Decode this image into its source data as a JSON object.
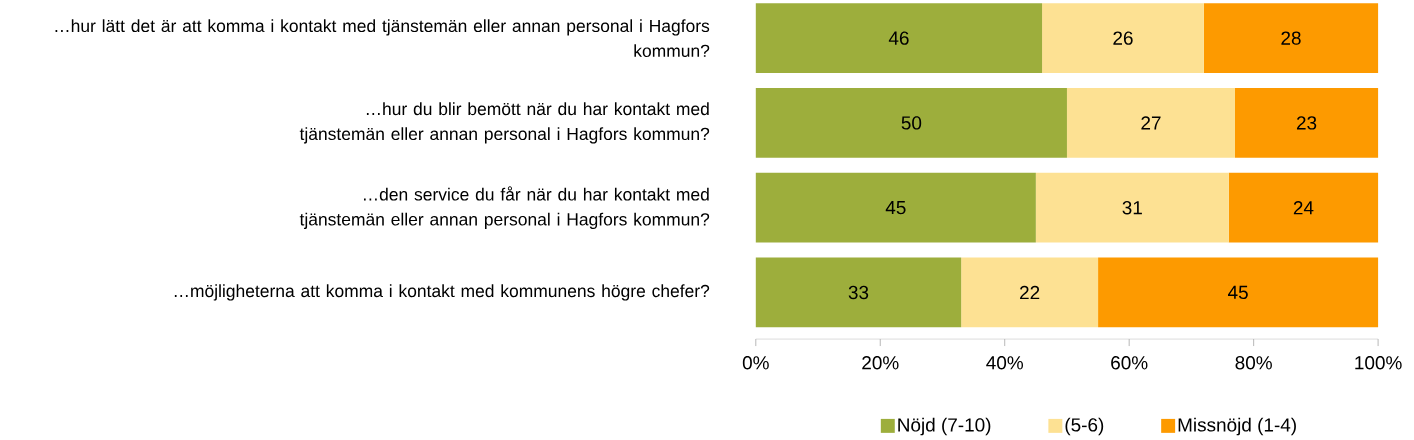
{
  "chart_data": {
    "type": "bar",
    "orientation": "horizontal",
    "stacked": true,
    "data_labels": true,
    "legend": "bottom",
    "categories": [
      "…hur lätt det är att komma i kontakt med tjänstemän eller annan personal i Hagfors kommun?",
      "…hur du blir bemött när du har kontakt med tjänstemän eller annan personal i Hagfors kommun?",
      "…den service du får när du har kontakt med tjänstemän eller annan personal i Hagfors kommun?",
      "…möjligheterna att komma i kontakt med kommunens högre chefer?"
    ],
    "series": [
      {
        "name": "Nöjd (7-10)",
        "color": "#9dae3c",
        "values": [
          46,
          50,
          45,
          33
        ]
      },
      {
        "name": "(5-6)",
        "color": "#fde193",
        "values": [
          26,
          27,
          31,
          22
        ]
      },
      {
        "name": "Missnöjd (1-4)",
        "color": "#fd9a00",
        "values": [
          28,
          23,
          24,
          45
        ]
      }
    ],
    "xlim": [
      0,
      100
    ],
    "xticks": [
      {
        "value": 0,
        "label": "0%"
      },
      {
        "value": 20,
        "label": "20%"
      },
      {
        "value": 40,
        "label": "40%"
      },
      {
        "value": 60,
        "label": "60%"
      },
      {
        "value": 80,
        "label": "80%"
      },
      {
        "value": 100,
        "label": "100%"
      }
    ]
  }
}
